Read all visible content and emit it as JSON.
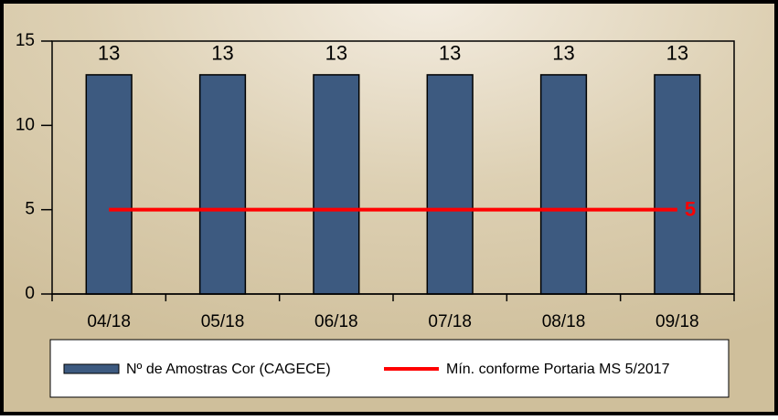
{
  "chart_data": {
    "type": "bar",
    "categories": [
      "04/18",
      "05/18",
      "06/18",
      "07/18",
      "08/18",
      "09/18"
    ],
    "series": [
      {
        "name": "Nº de Amostras Cor (CAGECE)",
        "type": "bar",
        "color": "#3d5a80",
        "data_labels": "all",
        "values": [
          13,
          13,
          13,
          13,
          13,
          13
        ]
      },
      {
        "name": "Mín. conforme Portaria MS 5/2017",
        "type": "line",
        "color": "#ff0000",
        "data_labels": "last",
        "values": [
          5,
          5,
          5,
          5,
          5,
          5
        ]
      }
    ],
    "ylim": [
      0,
      15
    ],
    "yticks": [
      0,
      5,
      10,
      15
    ],
    "grid": false,
    "legend": "bottom"
  }
}
